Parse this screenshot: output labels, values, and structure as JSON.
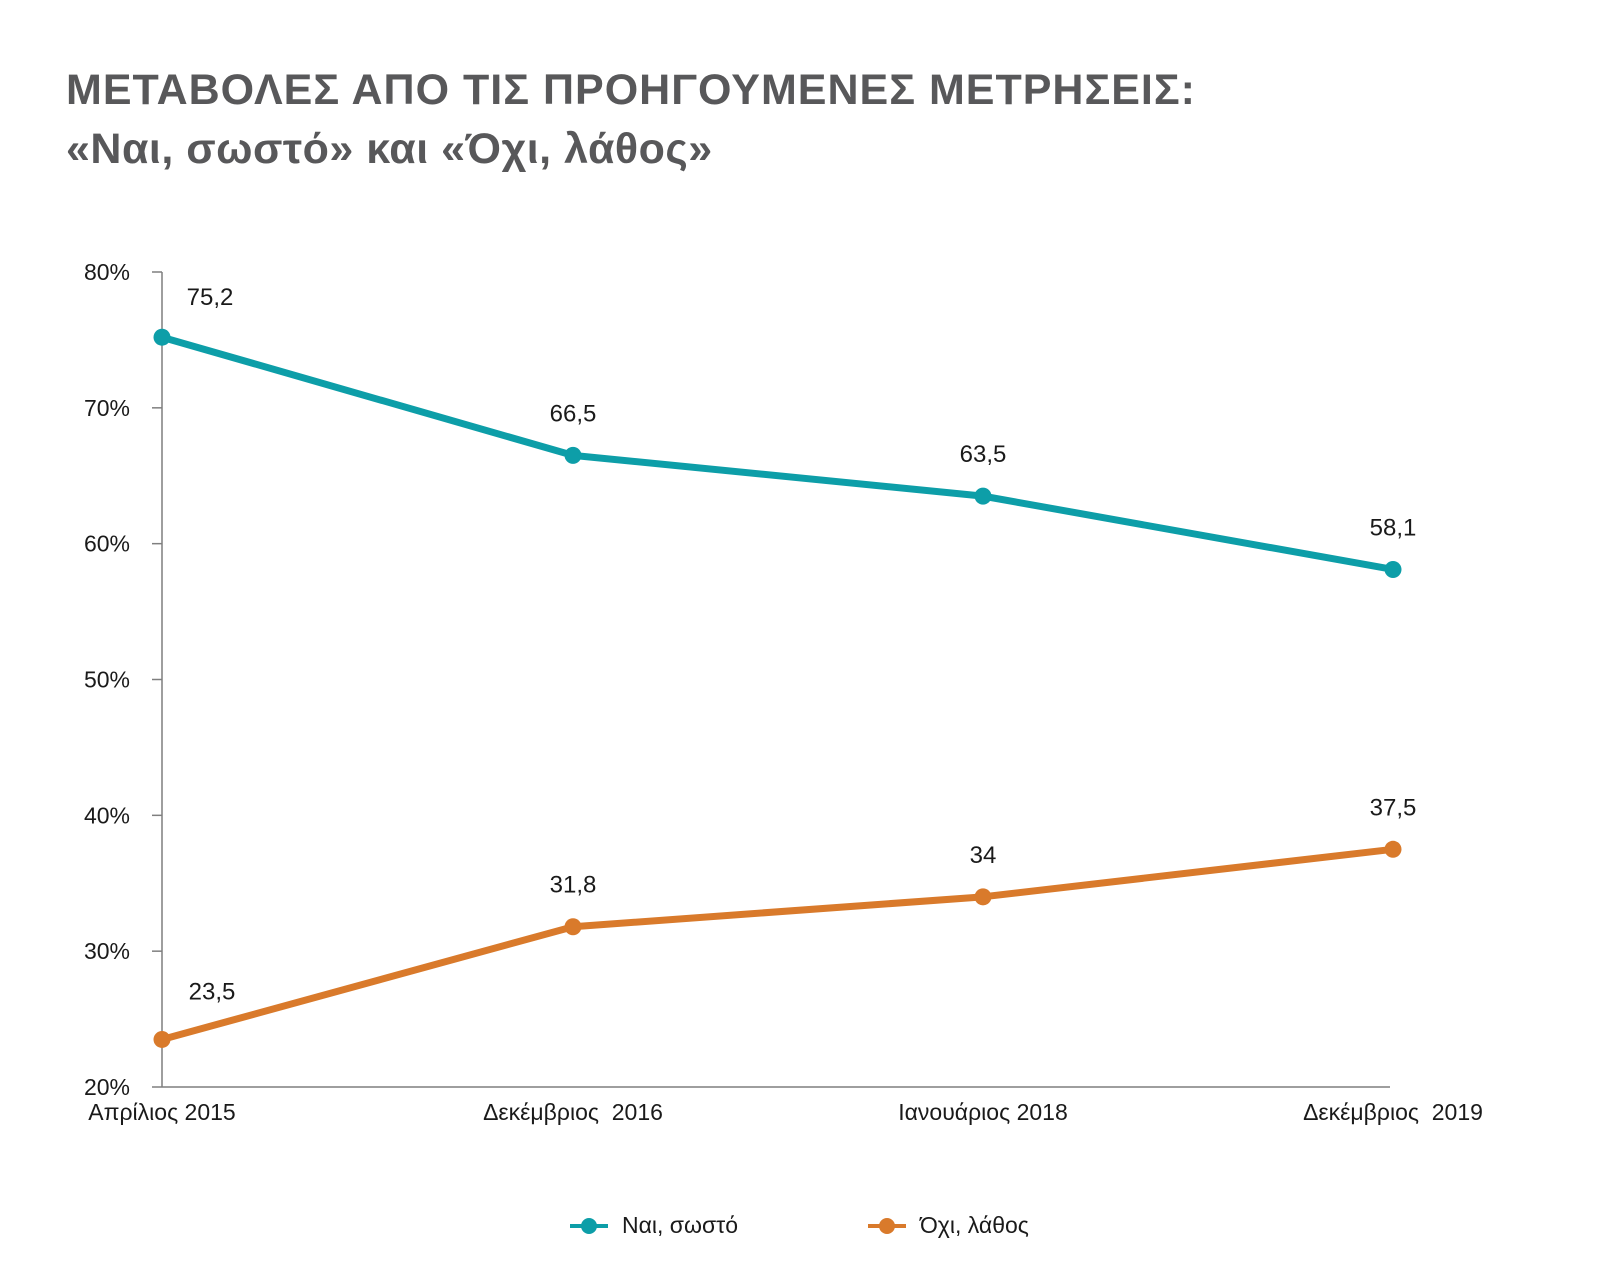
{
  "title": {
    "line1": "ΜΕΤΑΒΟΛΕΣ ΑΠΟ ΤΙΣ ΠΡΟΗΓΟΥΜΕΝΕΣ ΜΕΤΡΗΣΕΙΣ:",
    "line2": "«Ναι, σωστό» και «Όχι, λάθος»"
  },
  "colors": {
    "title": "#58585a",
    "axis": "#7f7f7f",
    "nai": "#0d9ea8",
    "oxi": "#d97a2b"
  },
  "chart_data": {
    "type": "line",
    "categories": [
      "Απρίλιος 2015",
      "Δεκέμβριος  2016",
      "Ιανουάριος 2018",
      "Δεκέμβριος  2019"
    ],
    "series": [
      {
        "name": "Ναι, σωστό",
        "values": [
          75.2,
          66.5,
          63.5,
          58.1
        ],
        "labels": [
          "75,2",
          "66,5",
          "63,5",
          "58,1"
        ],
        "color": "#0d9ea8"
      },
      {
        "name": "Όχι, λάθος",
        "values": [
          23.5,
          31.8,
          34,
          37.5
        ],
        "labels": [
          "23,5",
          "31,8",
          "34",
          "37,5"
        ],
        "color": "#d97a2b"
      }
    ],
    "y_ticks": [
      20,
      30,
      40,
      50,
      60,
      70,
      80
    ],
    "y_tick_labels": [
      "20%",
      "30%",
      "40%",
      "50%",
      "60%",
      "70%",
      "80%"
    ],
    "ylim": [
      20,
      80
    ],
    "grid": false,
    "legend_position": "bottom-center"
  }
}
